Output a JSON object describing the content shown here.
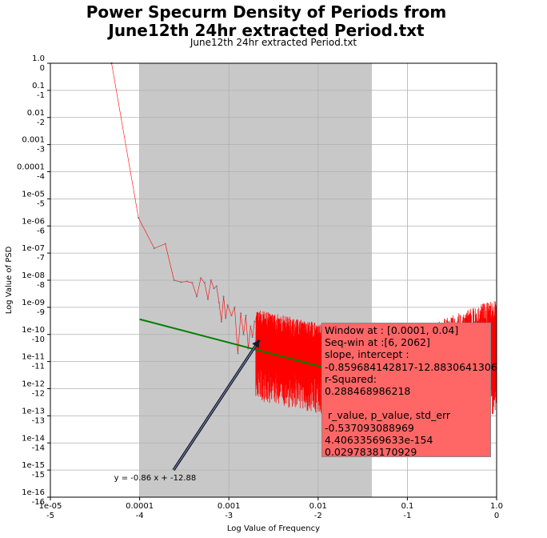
{
  "title": "Power Specurm Density of Periods from\nJune12th 24hr extracted Period.txt",
  "subtitle": "June12th 24hr extracted Period.txt",
  "chart_data": {
    "type": "line",
    "xlabel": "Log Value of Frequency",
    "ylabel": "Log Value of PSD",
    "x_scale": "log",
    "y_scale": "log",
    "xlim": [
      1e-05,
      1.0
    ],
    "ylim": [
      1e-16,
      1.0
    ],
    "grid": true,
    "x_tick_labels": [
      {
        "value": 1e-05,
        "top": "1e-05",
        "bottom": "-5"
      },
      {
        "value": 0.0001,
        "top": "0.0001",
        "bottom": "-4"
      },
      {
        "value": 0.001,
        "top": "0.001",
        "bottom": "-3"
      },
      {
        "value": 0.01,
        "top": "0.01",
        "bottom": "-2"
      },
      {
        "value": 0.1,
        "top": "0.1",
        "bottom": "-1"
      },
      {
        "value": 1.0,
        "top": "1.0",
        "bottom": "0"
      }
    ],
    "y_tick_labels": [
      {
        "value": 1.0,
        "top": "1.0",
        "bottom": "0"
      },
      {
        "value": 0.1,
        "top": "0.1",
        "bottom": "-1"
      },
      {
        "value": 0.01,
        "top": "0.01",
        "bottom": "-2"
      },
      {
        "value": 0.001,
        "top": "0.001",
        "bottom": "-3"
      },
      {
        "value": 0.0001,
        "top": "0.0001",
        "bottom": "-4"
      },
      {
        "value": 1e-05,
        "top": "1e-05",
        "bottom": "-5"
      },
      {
        "value": 1e-06,
        "top": "1e-06",
        "bottom": "-6"
      },
      {
        "value": 1e-07,
        "top": "1e-07",
        "bottom": "-7"
      },
      {
        "value": 1e-08,
        "top": "1e-08",
        "bottom": "-8"
      },
      {
        "value": 1e-09,
        "top": "1e-09",
        "bottom": "-9"
      },
      {
        "value": 1e-10,
        "top": "1e-10",
        "bottom": "-10"
      },
      {
        "value": 1e-11,
        "top": "1e-11",
        "bottom": "-11"
      },
      {
        "value": 1e-12,
        "top": "1e-12",
        "bottom": "-12"
      },
      {
        "value": 1e-13,
        "top": "1e-13",
        "bottom": "-13"
      },
      {
        "value": 1e-14,
        "top": "1e-14",
        "bottom": "-14"
      },
      {
        "value": 1e-15,
        "top": "1e-15",
        "bottom": "-15"
      },
      {
        "value": 1e-16,
        "top": "1e-16",
        "bottom": "-16"
      }
    ],
    "shaded_window": {
      "x_from": 0.0001,
      "x_to": 0.04,
      "color": "#c8c8c8"
    },
    "psd_series": {
      "color": "#ff0000",
      "marker_color": "#7a7aa0",
      "points": [
        [
          4.85e-05,
          1.0
        ],
        [
          9.7e-05,
          2e-06
        ],
        [
          0.000146,
          1.5e-07
        ],
        [
          0.000194,
          2.2e-07
        ],
        [
          0.000243,
          1e-08
        ],
        [
          0.000291,
          8.5e-09
        ],
        [
          0.00034,
          9e-09
        ],
        [
          0.000388,
          8e-09
        ],
        [
          0.000437,
          2.5e-09
        ],
        [
          0.000485,
          1.2e-08
        ],
        [
          0.000534,
          8e-09
        ],
        [
          0.000582,
          2e-09
        ],
        [
          0.000631,
          1e-08
        ],
        [
          0.000679,
          5e-09
        ],
        [
          0.000728,
          6e-09
        ],
        [
          0.000776,
          1.5e-09
        ],
        [
          0.000825,
          3e-10
        ],
        [
          0.000873,
          2.5e-09
        ],
        [
          0.000922,
          4e-10
        ],
        [
          0.00097,
          1.2e-09
        ],
        [
          0.00107,
          5e-10
        ],
        [
          0.00116,
          1e-09
        ],
        [
          0.00126,
          2e-11
        ],
        [
          0.00136,
          6e-10
        ],
        [
          0.00146,
          1e-10
        ],
        [
          0.00155,
          5e-10
        ],
        [
          0.00165,
          3e-11
        ],
        [
          0.00175,
          2e-10
        ],
        [
          0.00184,
          8e-11
        ],
        [
          0.00194,
          3e-10
        ]
      ]
    },
    "fit_line": {
      "color": "#008000",
      "slope": -0.86,
      "intercept": -12.88,
      "x_from": 0.0001,
      "x_to": 0.04
    },
    "annotation": {
      "text": "y = -0.86 x + -12.88",
      "text_x": 5.17e-05,
      "text_y": 4.1e-16,
      "arrow_from_x": 0.00024,
      "arrow_from_y": 1e-15,
      "arrow_to_x": 0.0022,
      "arrow_to_y": 6.3e-11
    },
    "info_box": {
      "lines": [
        "Window at : [0.0001, 0.04]",
        "Seq-win at :[6, 2062]",
        "slope, intercept :",
        "-0.859684142817-12.8830641306",
        "r-Squared:",
        "0.288468986218",
        "",
        " r_value, p_value, std_err",
        "-0.537093088969",
        "4.40633569633e-154",
        "0.0297838170929"
      ]
    }
  }
}
